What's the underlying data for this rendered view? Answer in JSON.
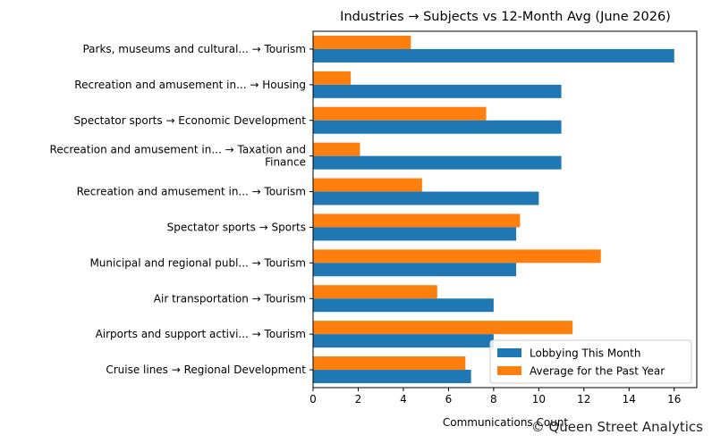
{
  "chart_data": {
    "type": "bar",
    "orientation": "horizontal",
    "title": "Industries → Subjects vs 12-Month Avg (June 2026)",
    "xlabel": "Communications Count",
    "ylabel": "",
    "xlim": [
      0,
      17
    ],
    "x_ticks": [
      0,
      2,
      4,
      6,
      8,
      10,
      12,
      14,
      16
    ],
    "grid": false,
    "legend_position": "bottom-right",
    "categories": [
      [
        "Parks, museums and cultural... → Tourism"
      ],
      [
        "Recreation and amusement in... → Housing"
      ],
      [
        "Spectator sports → Economic Development"
      ],
      [
        "Recreation and amusement in... → Taxation and",
        "Finance"
      ],
      [
        "Recreation and amusement in... → Tourism"
      ],
      [
        "Spectator sports → Sports"
      ],
      [
        "Municipal and regional publ... → Tourism"
      ],
      [
        "Air transportation → Tourism"
      ],
      [
        "Airports and support activi... → Tourism"
      ],
      [
        "Cruise lines → Regional Development"
      ]
    ],
    "series": [
      {
        "name": "Lobbying This Month",
        "color": "#1f77b4",
        "values": [
          16,
          11,
          11,
          11,
          10,
          9,
          9,
          8,
          8,
          7
        ]
      },
      {
        "name": "Average for the Past Year",
        "color": "#ff7f0e",
        "values": [
          4.33,
          1.67,
          7.67,
          2.08,
          4.83,
          9.17,
          12.75,
          5.5,
          11.5,
          6.75
        ]
      }
    ]
  },
  "watermark": "© Queen Street Analytics"
}
